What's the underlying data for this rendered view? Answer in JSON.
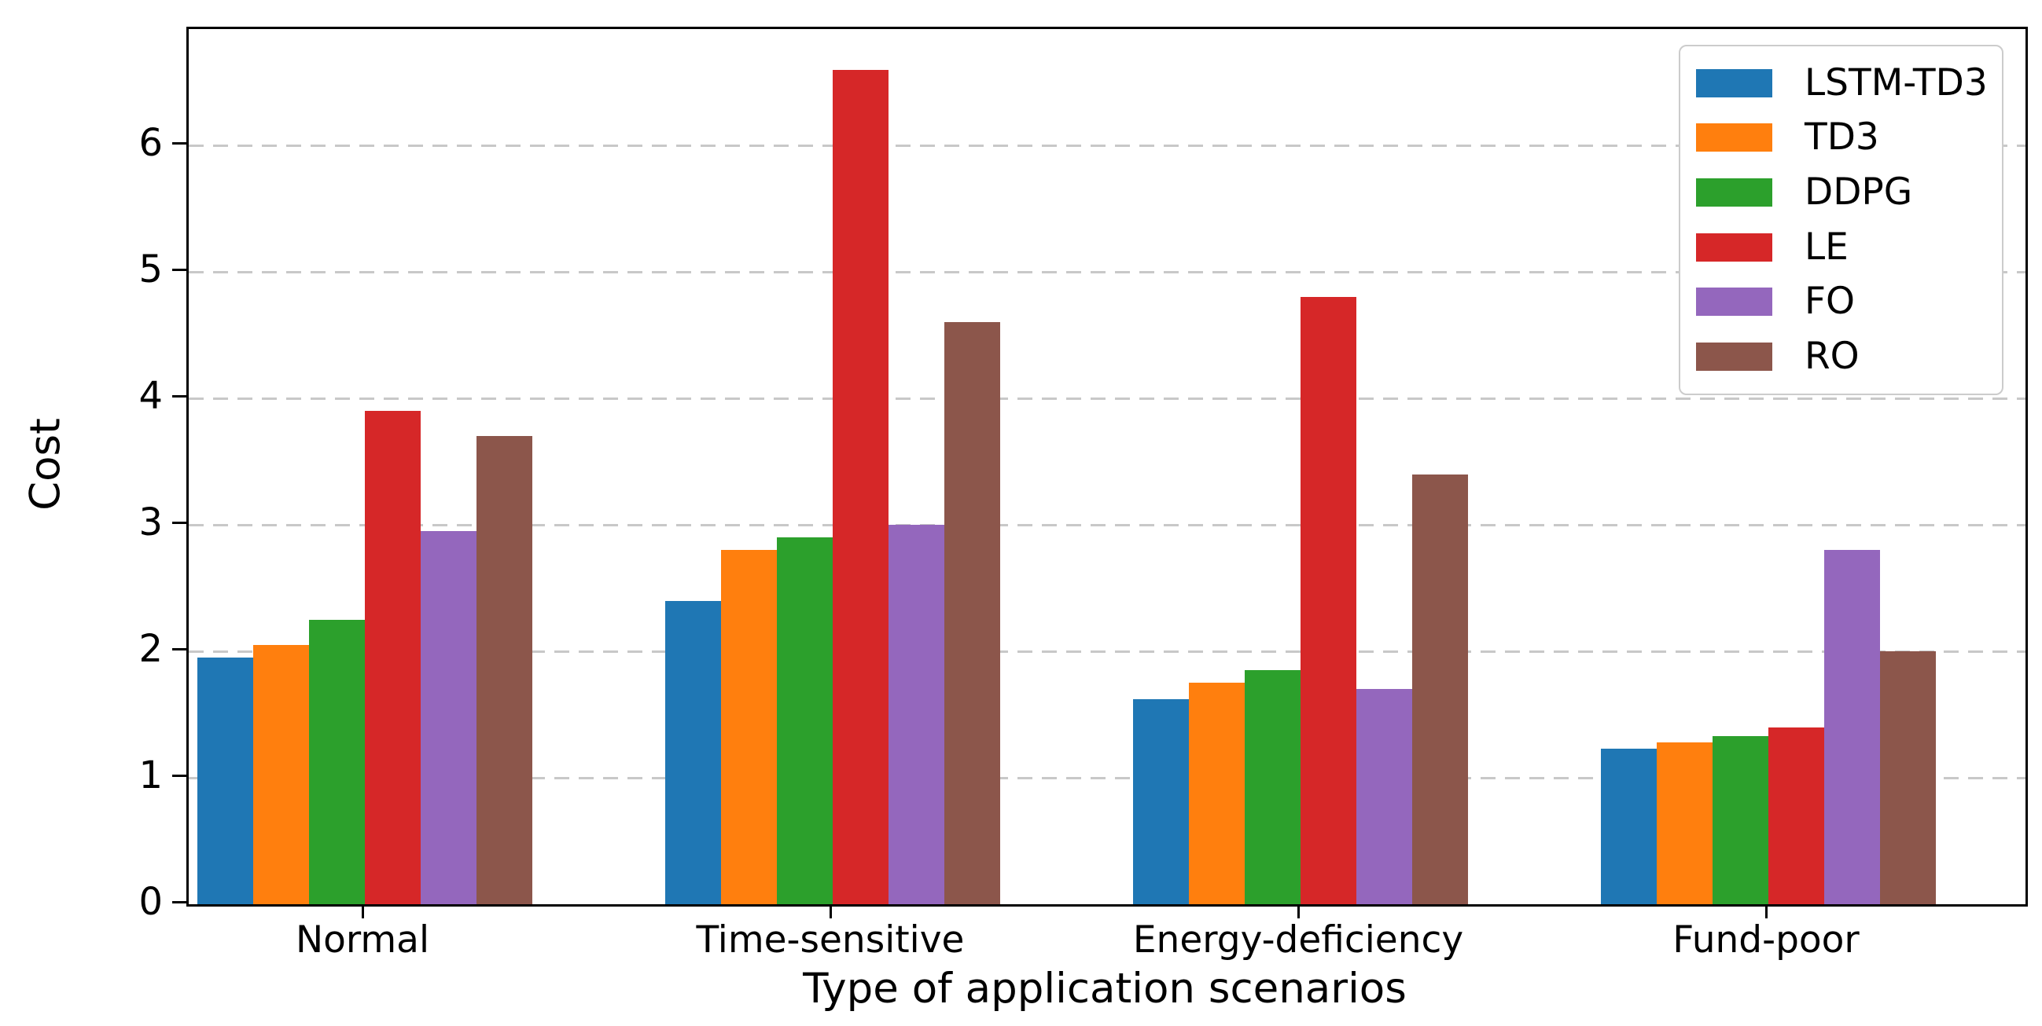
{
  "chart_data": {
    "type": "bar",
    "title": "",
    "xlabel": "Type of application scenarios",
    "ylabel": "Cost",
    "categories": [
      "Normal",
      "Time-sensitive",
      "Energy-deficiency",
      "Fund-poor"
    ],
    "series": [
      {
        "name": "LSTM-TD3",
        "color": "#1f77b4",
        "values": [
          1.95,
          2.4,
          1.62,
          1.23
        ]
      },
      {
        "name": "TD3",
        "color": "#ff7f0e",
        "values": [
          2.05,
          2.8,
          1.75,
          1.28
        ]
      },
      {
        "name": "DDPG",
        "color": "#2ca02c",
        "values": [
          2.25,
          2.9,
          1.85,
          1.33
        ]
      },
      {
        "name": "LE",
        "color": "#d62728",
        "values": [
          3.9,
          6.6,
          4.8,
          1.4
        ]
      },
      {
        "name": "FO",
        "color": "#9467bd",
        "values": [
          2.95,
          3.0,
          1.7,
          2.8
        ]
      },
      {
        "name": "RO",
        "color": "#8c564b",
        "values": [
          3.7,
          4.6,
          3.4,
          2.0
        ]
      }
    ],
    "ylim": [
      0,
      6.92
    ],
    "yticks": [
      0,
      1,
      2,
      3,
      4,
      5,
      6
    ],
    "grid": "horizontal-dashed",
    "gridline_color": "#c8c8c8",
    "legend": {
      "position": "upper-right",
      "entries": [
        "LSTM-TD3",
        "TD3",
        "DDPG",
        "LE",
        "FO",
        "RO"
      ]
    }
  }
}
